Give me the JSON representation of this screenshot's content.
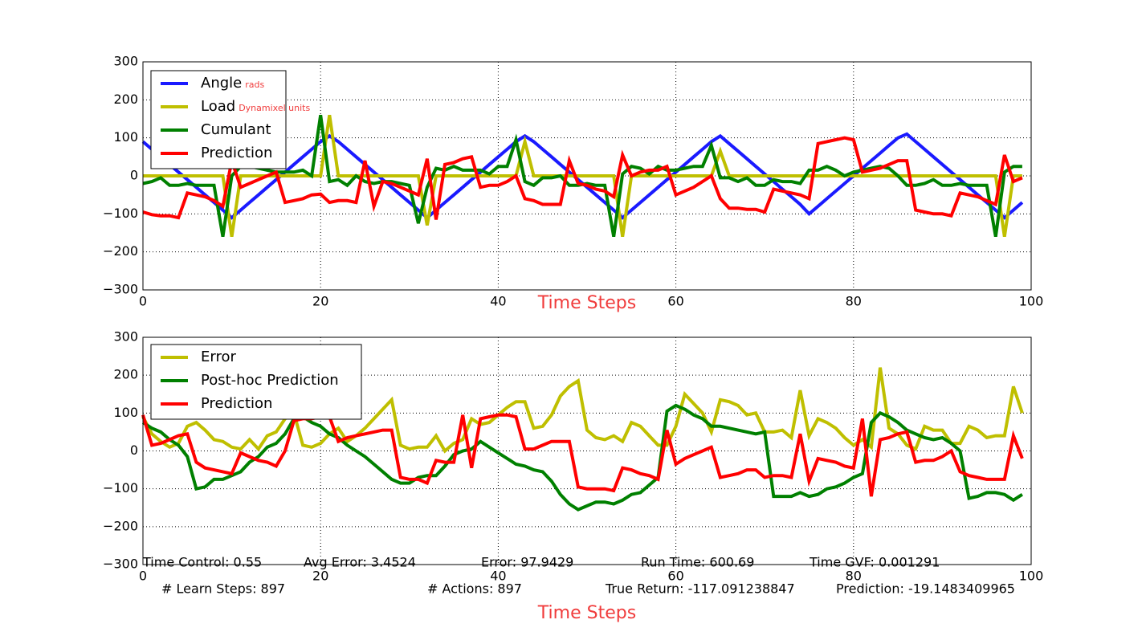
{
  "chart_data": [
    {
      "type": "line",
      "xlabel": "Time Steps",
      "x": [
        0,
        1,
        2,
        3,
        4,
        5,
        6,
        7,
        8,
        9,
        10,
        11,
        12,
        13,
        14,
        15,
        16,
        17,
        18,
        19,
        20,
        21,
        22,
        23,
        24,
        25,
        26,
        27,
        28,
        29,
        30,
        31,
        32,
        33,
        34,
        35,
        36,
        37,
        38,
        39,
        40,
        41,
        42,
        43,
        44,
        45,
        46,
        47,
        48,
        49,
        50,
        51,
        52,
        53,
        54,
        55,
        56,
        57,
        58,
        59,
        60,
        61,
        62,
        63,
        64,
        65,
        66,
        67,
        68,
        69,
        70,
        71,
        72,
        73,
        74,
        75,
        76,
        77,
        78,
        79,
        80,
        81,
        82,
        83,
        84,
        85,
        86,
        87,
        88,
        89,
        90,
        91,
        92,
        93,
        94,
        95,
        96,
        97,
        98,
        99
      ],
      "xlim": [
        0,
        100
      ],
      "xticks": [
        0,
        20,
        40,
        60,
        80,
        100
      ],
      "ylim": [
        -300,
        300
      ],
      "yticks": [
        {
          "value": -300,
          "label": "−300"
        },
        {
          "value": -200,
          "label": "−200"
        },
        {
          "value": -100,
          "label": "−100"
        },
        0,
        100,
        200,
        300
      ],
      "grid": true,
      "legend": "upper left",
      "series": [
        {
          "name": "Angle",
          "unit": "rads",
          "color": "#1a1aff",
          "values": [
            90,
            70,
            50,
            30,
            10,
            -10,
            -30,
            -50,
            -70,
            -90,
            -110,
            -90,
            -70,
            -50,
            -30,
            -10,
            10,
            30,
            50,
            70,
            90,
            105,
            90,
            70,
            50,
            30,
            10,
            -10,
            -30,
            -50,
            -70,
            -90,
            -110,
            -90,
            -70,
            -50,
            -30,
            -10,
            10,
            30,
            50,
            70,
            90,
            105,
            90,
            70,
            50,
            30,
            10,
            -10,
            -30,
            -50,
            -70,
            -90,
            -110,
            -90,
            -70,
            -50,
            -30,
            -10,
            10,
            30,
            50,
            70,
            90,
            105,
            85,
            65,
            45,
            25,
            5,
            -15,
            -35,
            -55,
            -75,
            -100,
            -80,
            -60,
            -40,
            -20,
            0,
            20,
            40,
            60,
            80,
            100,
            110,
            90,
            70,
            50,
            30,
            10,
            -10,
            -30,
            -50,
            -70,
            -90,
            -110,
            -90,
            -70
          ]
        },
        {
          "name": "Load",
          "unit": "Dynamixel units",
          "color": "#bfbf00",
          "values": [
            0,
            0,
            0,
            0,
            0,
            0,
            0,
            0,
            0,
            0,
            -160,
            0,
            0,
            0,
            0,
            0,
            0,
            0,
            0,
            0,
            0,
            160,
            0,
            0,
            0,
            0,
            0,
            0,
            0,
            0,
            0,
            0,
            -130,
            0,
            0,
            0,
            0,
            0,
            0,
            0,
            0,
            0,
            0,
            90,
            0,
            0,
            0,
            0,
            0,
            0,
            0,
            0,
            0,
            0,
            -160,
            0,
            0,
            0,
            0,
            0,
            0,
            0,
            0,
            0,
            0,
            65,
            0,
            0,
            0,
            0,
            0,
            0,
            0,
            0,
            0,
            0,
            0,
            0,
            0,
            0,
            0,
            0,
            0,
            0,
            0,
            0,
            0,
            0,
            0,
            0,
            0,
            0,
            0,
            0,
            0,
            0,
            0,
            -160,
            0,
            0
          ]
        },
        {
          "name": "Cumulant",
          "color": "#008000",
          "values": [
            -20,
            -15,
            -5,
            -25,
            -25,
            -20,
            -25,
            -25,
            -25,
            -160,
            0,
            25,
            25,
            20,
            15,
            10,
            10,
            10,
            15,
            0,
            160,
            -15,
            -10,
            -25,
            0,
            -15,
            -20,
            -15,
            -15,
            -20,
            -25,
            -125,
            -30,
            20,
            15,
            25,
            15,
            15,
            15,
            5,
            25,
            25,
            95,
            -15,
            -25,
            -5,
            -5,
            0,
            -25,
            -25,
            -20,
            -25,
            -25,
            -160,
            5,
            25,
            20,
            5,
            25,
            15,
            15,
            20,
            25,
            25,
            80,
            -5,
            -5,
            -15,
            -5,
            -25,
            -25,
            -10,
            -15,
            -15,
            -20,
            15,
            15,
            25,
            15,
            0,
            10,
            15,
            20,
            25,
            20,
            0,
            -25,
            -25,
            -20,
            -10,
            -25,
            -25,
            -20,
            -25,
            -25,
            -25,
            -160,
            10,
            25,
            25
          ]
        },
        {
          "name": "Prediction",
          "color": "#ff0000",
          "values": [
            -95,
            -102,
            -105,
            -105,
            -110,
            -45,
            -50,
            -55,
            -65,
            -80,
            40,
            -30,
            -20,
            -10,
            0,
            10,
            -70,
            -65,
            -60,
            -50,
            -48,
            -70,
            -65,
            -65,
            -70,
            40,
            -80,
            -15,
            -20,
            -30,
            -40,
            -50,
            45,
            -115,
            30,
            35,
            45,
            50,
            -30,
            -25,
            -25,
            -15,
            0,
            -60,
            -65,
            -75,
            -75,
            -75,
            40,
            -20,
            -25,
            -35,
            -40,
            -55,
            55,
            0,
            10,
            15,
            15,
            25,
            -50,
            -40,
            -30,
            -15,
            0,
            -60,
            -85,
            -85,
            -88,
            -88,
            -95,
            -35,
            -40,
            -45,
            -50,
            -60,
            85,
            90,
            95,
            100,
            95,
            10,
            15,
            20,
            30,
            40,
            40,
            -90,
            -95,
            -100,
            -100,
            -105,
            -45,
            -50,
            -55,
            -65,
            -75,
            55,
            -15,
            -5
          ]
        }
      ]
    },
    {
      "type": "line",
      "xlabel": "Time Steps",
      "x": [
        0,
        1,
        2,
        3,
        4,
        5,
        6,
        7,
        8,
        9,
        10,
        11,
        12,
        13,
        14,
        15,
        16,
        17,
        18,
        19,
        20,
        21,
        22,
        23,
        24,
        25,
        26,
        27,
        28,
        29,
        30,
        31,
        32,
        33,
        34,
        35,
        36,
        37,
        38,
        39,
        40,
        41,
        42,
        43,
        44,
        45,
        46,
        47,
        48,
        49,
        50,
        51,
        52,
        53,
        54,
        55,
        56,
        57,
        58,
        59,
        60,
        61,
        62,
        63,
        64,
        65,
        66,
        67,
        68,
        69,
        70,
        71,
        72,
        73,
        74,
        75,
        76,
        77,
        78,
        79,
        80,
        81,
        82,
        83,
        84,
        85,
        86,
        87,
        88,
        89,
        90,
        91,
        92,
        93,
        94,
        95,
        96,
        97,
        98,
        99
      ],
      "xlim": [
        0,
        100
      ],
      "xticks": [
        0,
        20,
        40,
        60,
        80,
        100
      ],
      "ylim": [
        -300,
        300
      ],
      "yticks": [
        {
          "value": -300,
          "label": "−300"
        },
        {
          "value": -200,
          "label": "−200"
        },
        {
          "value": -100,
          "label": "−100"
        },
        0,
        100,
        200,
        300
      ],
      "grid": true,
      "legend": "upper left",
      "series": [
        {
          "name": "Error",
          "color": "#bfbf00",
          "values": [
            90,
            45,
            25,
            10,
            20,
            65,
            75,
            55,
            30,
            25,
            10,
            5,
            30,
            5,
            40,
            50,
            85,
            100,
            15,
            10,
            20,
            45,
            60,
            25,
            40,
            60,
            85,
            110,
            135,
            15,
            5,
            10,
            10,
            40,
            0,
            20,
            30,
            85,
            70,
            75,
            95,
            115,
            130,
            130,
            60,
            65,
            95,
            145,
            170,
            185,
            55,
            35,
            30,
            40,
            25,
            75,
            65,
            40,
            15,
            15,
            65,
            150,
            125,
            100,
            50,
            135,
            130,
            120,
            95,
            100,
            50,
            50,
            55,
            35,
            160,
            40,
            85,
            75,
            60,
            35,
            15,
            30,
            10,
            220,
            60,
            45,
            15,
            5,
            65,
            55,
            55,
            20,
            20,
            65,
            55,
            35,
            40,
            40,
            170,
            100
          ]
        },
        {
          "name": "Post-hoc Prediction",
          "color": "#008000",
          "values": [
            75,
            60,
            50,
            30,
            15,
            -15,
            -100,
            -95,
            -75,
            -75,
            -65,
            -55,
            -30,
            -15,
            10,
            20,
            45,
            85,
            90,
            75,
            65,
            45,
            35,
            15,
            0,
            -15,
            -35,
            -55,
            -75,
            -85,
            -85,
            -70,
            -65,
            -65,
            -40,
            -10,
            0,
            5,
            25,
            10,
            -5,
            -20,
            -35,
            -40,
            -50,
            -55,
            -80,
            -115,
            -140,
            -155,
            -145,
            -135,
            -135,
            -140,
            -130,
            -115,
            -110,
            -90,
            -70,
            105,
            120,
            110,
            95,
            85,
            65,
            65,
            60,
            55,
            50,
            45,
            50,
            -120,
            -120,
            -120,
            -110,
            -120,
            -115,
            -100,
            -95,
            -85,
            -70,
            -60,
            75,
            100,
            90,
            75,
            55,
            45,
            35,
            30,
            35,
            20,
            0,
            -125,
            -120,
            -110,
            -110,
            -115,
            -130,
            -115
          ]
        },
        {
          "name": "Prediction",
          "color": "#ff0000",
          "values": [
            95,
            15,
            20,
            30,
            40,
            45,
            -30,
            -45,
            -50,
            -55,
            -60,
            -5,
            -15,
            -25,
            -30,
            -40,
            0,
            80,
            85,
            85,
            90,
            90,
            25,
            35,
            40,
            45,
            50,
            55,
            55,
            -70,
            -75,
            -75,
            -85,
            -25,
            -30,
            -30,
            95,
            -45,
            85,
            90,
            95,
            95,
            90,
            5,
            5,
            15,
            25,
            25,
            25,
            -95,
            -100,
            -100,
            -100,
            -105,
            -45,
            -50,
            -60,
            -65,
            -75,
            55,
            -35,
            -20,
            -10,
            0,
            10,
            -70,
            -65,
            -60,
            -50,
            -50,
            -70,
            -65,
            -65,
            -70,
            45,
            -80,
            -20,
            -25,
            -30,
            -40,
            -45,
            85,
            -120,
            30,
            35,
            45,
            50,
            -30,
            -25,
            -25,
            -15,
            0,
            -55,
            -65,
            -70,
            -75,
            -75,
            -75,
            40,
            -20
          ]
        }
      ],
      "annotations": [
        "Time Control: 0.55",
        "Avg Error: 3.4524",
        "Error: 97.9429",
        "Run Time: 600.69",
        "Time GVF: 0.001291",
        "# Learn Steps: 897",
        "# Actions: 897",
        "True Return: -117.091238847",
        "Prediction: -19.1483409965"
      ]
    }
  ]
}
